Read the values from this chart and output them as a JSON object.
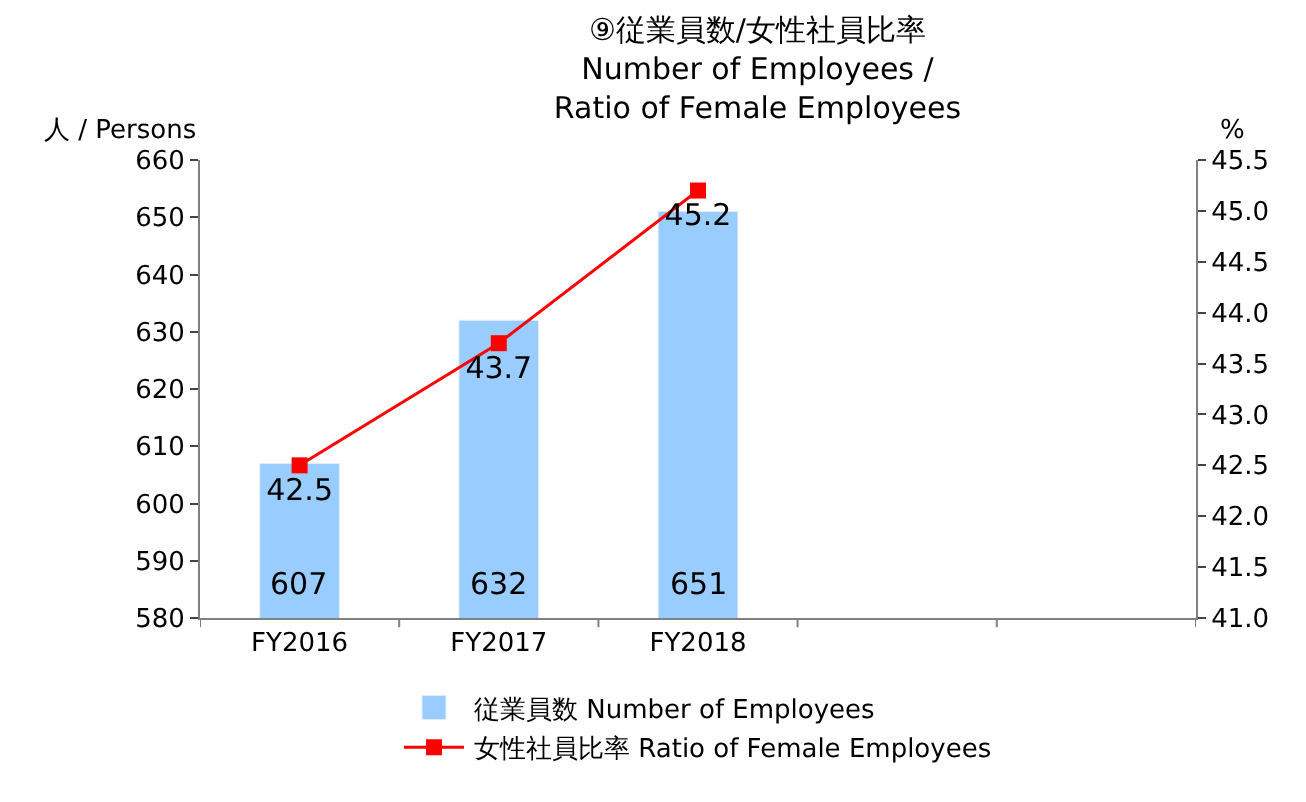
{
  "chart_data": {
    "type": "bar",
    "title": "⑨従業員数/女性社員比率\nNumber of Employees /\nRatio of Female Employees",
    "ylabel": "人 / Persons",
    "y2label": "%",
    "categories": [
      "FY2016",
      "FY2017",
      "FY2018",
      null,
      null
    ],
    "series": [
      {
        "name": "従業員数 Number of Employees",
        "color": "#99ccff",
        "values": [
          607,
          632,
          651,
          null,
          null
        ]
      },
      {
        "name": "女性社員比率 Ratio of Female Employees",
        "type": "line",
        "axis": "y2",
        "color": "#ff0000",
        "marker": "square",
        "values": [
          42.5,
          43.7,
          45.2,
          null,
          null
        ]
      }
    ],
    "ylim": [
      580,
      660
    ],
    "yticks": [
      580,
      590,
      600,
      610,
      620,
      630,
      640,
      650,
      660
    ],
    "y2lim": [
      41.0,
      45.5
    ],
    "y2ticks": [
      {
        "value": 41.0,
        "label": "41.0"
      },
      41.5,
      {
        "value": 42.0,
        "label": "42.0"
      },
      42.5,
      {
        "value": 43.0,
        "label": "43.0"
      },
      43.5,
      {
        "value": 44.0,
        "label": "44.0"
      },
      44.5,
      {
        "value": 45.0,
        "label": "45.0"
      },
      45.5
    ],
    "data_labels": true,
    "legend": "bottom"
  }
}
